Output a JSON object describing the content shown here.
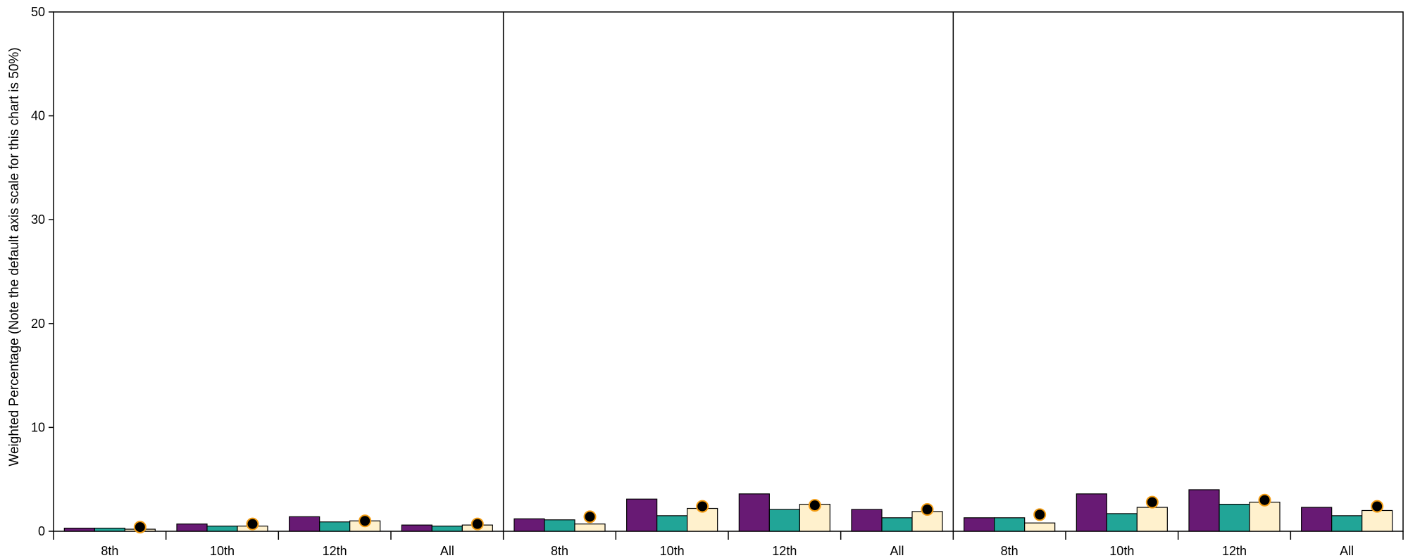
{
  "chart_data": {
    "type": "bar",
    "ylabel": "Weighted Percentage (Note the default axis scale for this chart is 50%)",
    "ylim": [
      0,
      50
    ],
    "yticks": [
      0,
      10,
      20,
      30,
      40,
      50
    ],
    "grid": false,
    "legend": "none",
    "categories": [
      "8th",
      "10th",
      "12th",
      "All"
    ],
    "series_colors": [
      "#681a74",
      "#21a597",
      "#fff1cd"
    ],
    "marker_color": "#000000",
    "marker_outline_color": "#f39c12",
    "panels": [
      {
        "series": [
          {
            "values": [
              0.3,
              0.7,
              1.4,
              0.6
            ]
          },
          {
            "values": [
              0.3,
              0.5,
              0.9,
              0.5
            ]
          },
          {
            "values": [
              0.2,
              0.5,
              1.0,
              0.6
            ]
          }
        ],
        "markers": [
          0.4,
          0.7,
          1.0,
          0.7
        ]
      },
      {
        "series": [
          {
            "values": [
              1.2,
              3.1,
              3.6,
              2.1
            ]
          },
          {
            "values": [
              1.1,
              1.5,
              2.1,
              1.3
            ]
          },
          {
            "values": [
              0.7,
              2.2,
              2.6,
              1.9
            ]
          }
        ],
        "markers": [
          1.4,
          2.4,
          2.5,
          2.1
        ]
      },
      {
        "series": [
          {
            "values": [
              1.3,
              3.6,
              4.0,
              2.3
            ]
          },
          {
            "values": [
              1.3,
              1.7,
              2.6,
              1.5
            ]
          },
          {
            "values": [
              0.8,
              2.3,
              2.8,
              2.0
            ]
          }
        ],
        "markers": [
          1.6,
          2.8,
          3.0,
          2.4
        ]
      }
    ]
  }
}
